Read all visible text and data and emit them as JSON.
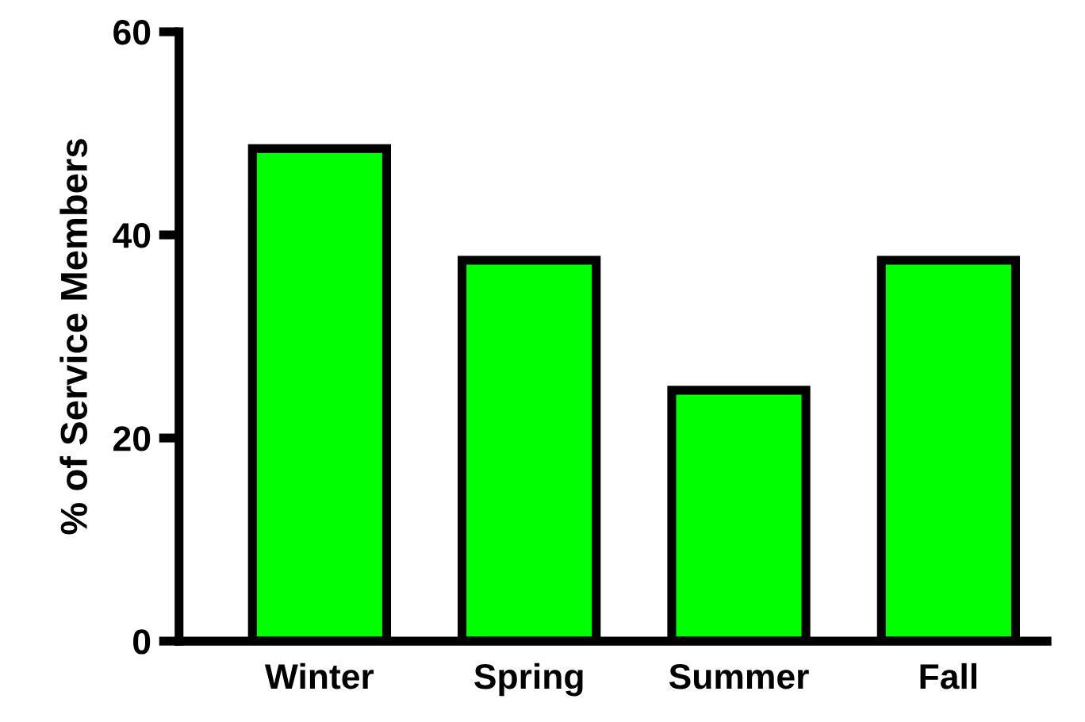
{
  "chart_data": {
    "type": "bar",
    "ylabel": "% of Service Members",
    "categories": [
      "Winter",
      "Spring",
      "Summer",
      "Fall"
    ],
    "values": [
      48.5,
      37.5,
      24.7,
      37.5
    ],
    "color": "#00ff00",
    "ylim": [
      0,
      60
    ],
    "yticks": [
      0,
      20,
      40,
      60
    ],
    "grid": false
  }
}
